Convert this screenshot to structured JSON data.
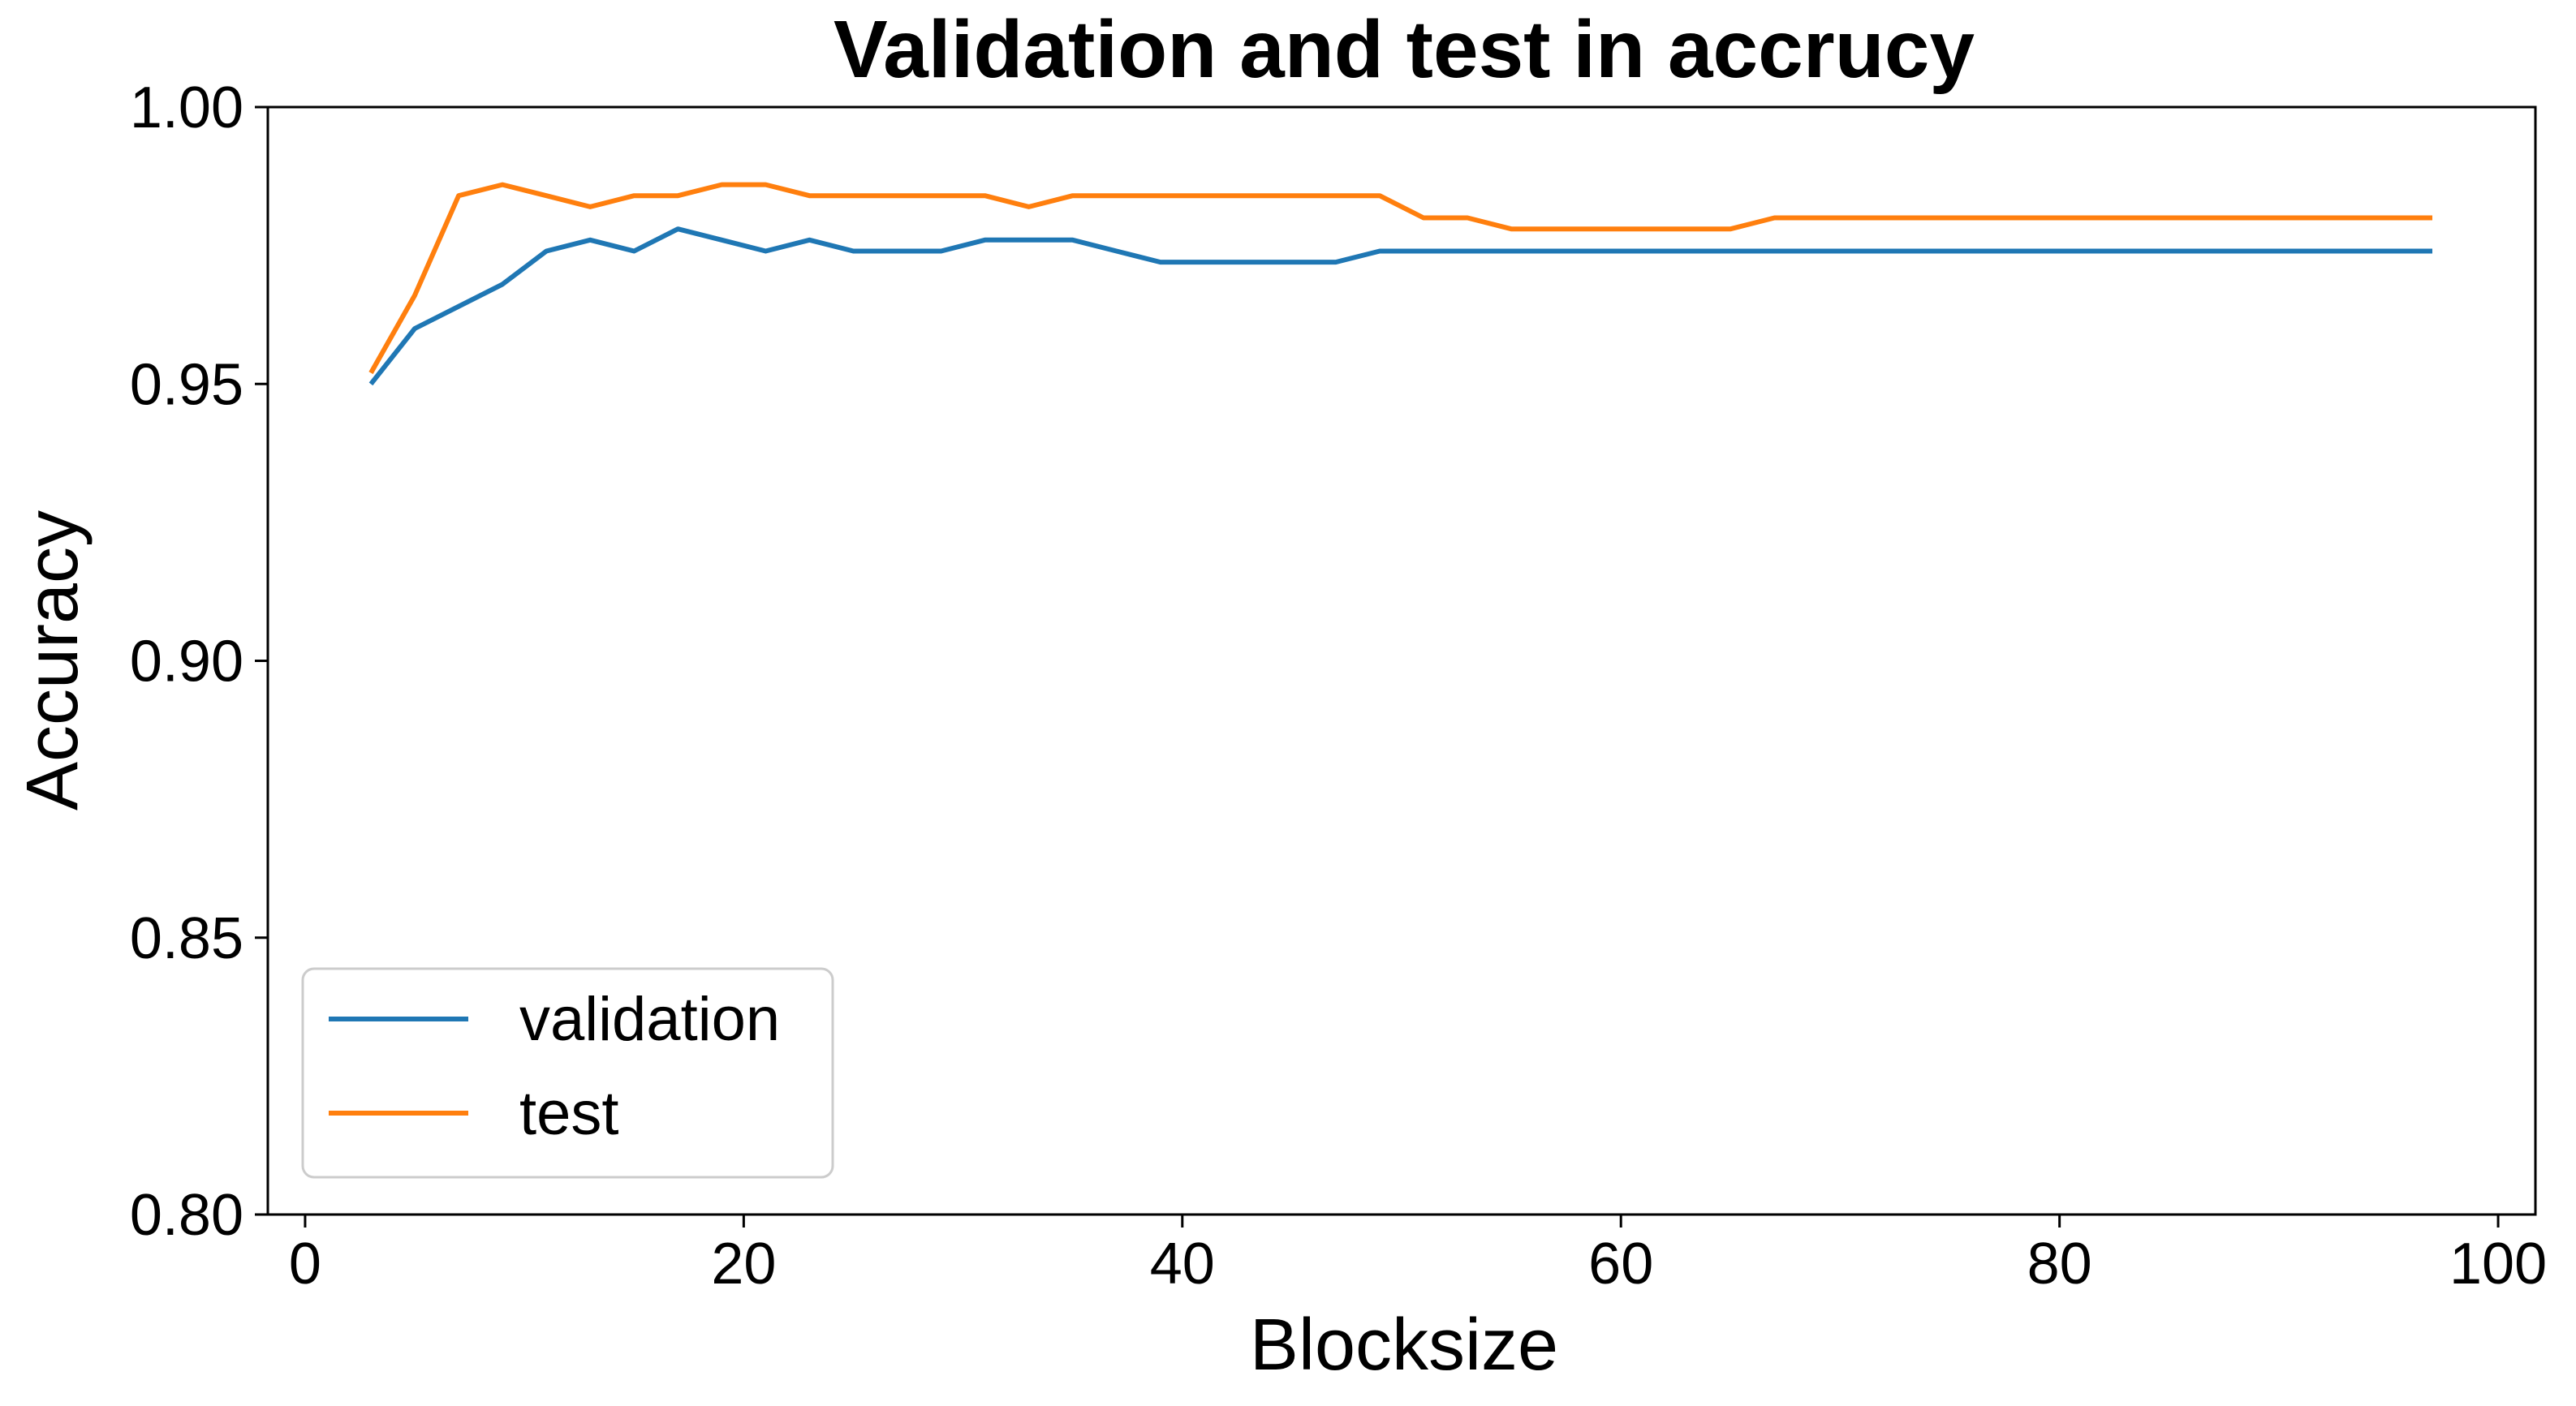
{
  "chart_data": {
    "type": "line",
    "title": "Validation and test in accrucy",
    "xlabel": "Blocksize",
    "ylabel": "Accuracy",
    "xlim": [
      -1.7,
      101.7
    ],
    "ylim": [
      0.8,
      1.0
    ],
    "xticks": [
      0,
      20,
      40,
      60,
      80,
      100
    ],
    "xtick_labels": [
      "0",
      "20",
      "40",
      "60",
      "80",
      "100"
    ],
    "yticks": [
      0.8,
      0.85,
      0.9,
      0.95,
      1.0
    ],
    "ytick_labels": [
      "0.80",
      "0.85",
      "0.90",
      "0.95",
      "1.00"
    ],
    "grid": false,
    "legend_position": "lower-left",
    "x": [
      3,
      5,
      7,
      9,
      11,
      13,
      15,
      17,
      19,
      21,
      23,
      25,
      27,
      29,
      31,
      33,
      35,
      37,
      39,
      41,
      43,
      45,
      47,
      49,
      51,
      53,
      55,
      57,
      59,
      61,
      63,
      65,
      67,
      69,
      71,
      73,
      75,
      77,
      79,
      81,
      83,
      85,
      87,
      89,
      91,
      93,
      95,
      97
    ],
    "series": [
      {
        "name": "validation",
        "color": "#1f77b4",
        "values": [
          0.95,
          0.96,
          0.964,
          0.968,
          0.974,
          0.976,
          0.974,
          0.978,
          0.976,
          0.974,
          0.976,
          0.974,
          0.974,
          0.974,
          0.976,
          0.976,
          0.976,
          0.974,
          0.972,
          0.972,
          0.972,
          0.972,
          0.972,
          0.974,
          0.974,
          0.974,
          0.974,
          0.974,
          0.974,
          0.974,
          0.974,
          0.974,
          0.974,
          0.974,
          0.974,
          0.974,
          0.974,
          0.974,
          0.974,
          0.974,
          0.974,
          0.974,
          0.974,
          0.974,
          0.974,
          0.974,
          0.974,
          0.974
        ]
      },
      {
        "name": "test",
        "color": "#ff7f0e",
        "values": [
          0.952,
          0.966,
          0.984,
          0.986,
          0.984,
          0.982,
          0.984,
          0.984,
          0.986,
          0.986,
          0.984,
          0.984,
          0.984,
          0.984,
          0.984,
          0.982,
          0.984,
          0.984,
          0.984,
          0.984,
          0.984,
          0.984,
          0.984,
          0.984,
          0.98,
          0.98,
          0.978,
          0.978,
          0.978,
          0.978,
          0.978,
          0.978,
          0.98,
          0.98,
          0.98,
          0.98,
          0.98,
          0.98,
          0.98,
          0.98,
          0.98,
          0.98,
          0.98,
          0.98,
          0.98,
          0.98,
          0.98,
          0.98
        ]
      }
    ]
  }
}
